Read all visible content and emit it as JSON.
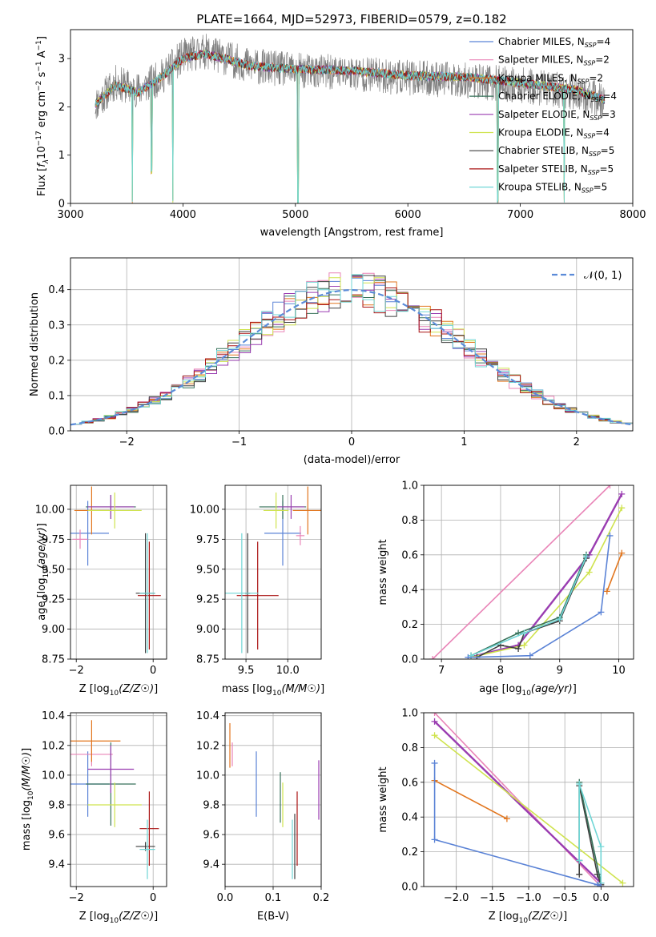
{
  "figure": {
    "title": "PLATE=1664, MJD=52973, FIBERID=0579, z=0.182"
  },
  "colors": {
    "Chabrier MILES": "#5b83d6",
    "Salpeter MILES": "#e984b7",
    "Kroupa MILES": "#e2761e",
    "Chabrier ELODIE": "#37725a",
    "Salpeter ELODIE": "#9a3db1",
    "Kroupa ELODIE": "#cfe34e",
    "Chabrier STELIB": "#3f3f3f",
    "Salpeter STELIB": "#aa1212",
    "Kroupa STELIB": "#70d6d6",
    "normal_curve": "#5b8bd8",
    "grid": "#b0b0b0"
  },
  "chart_data": [
    {
      "id": "spectrum",
      "type": "line",
      "title": "PLATE=1664, MJD=52973, FIBERID=0579, z=0.182",
      "xlabel": "wavelength [Angstrom, rest frame]",
      "ylabel": "Flux [f_λ10^-17 erg cm^-2 s^-1 A^-1]",
      "xlim": [
        3000,
        8000
      ],
      "ylim": [
        0,
        3.6
      ],
      "xticks": [
        "3000",
        "4000",
        "5000",
        "6000",
        "7000",
        "8000"
      ],
      "yticks": [
        "0",
        "1",
        "2",
        "3"
      ],
      "grid": false,
      "legend_position": "top-right",
      "legend": [
        {
          "model": "Chabrier MILES",
          "label": "Chabrier MILES, N",
          "n": "4"
        },
        {
          "model": "Salpeter MILES",
          "label": "Salpeter MILES, N",
          "n": "2"
        },
        {
          "model": "Kroupa MILES",
          "label": "Kroupa MILES, N",
          "n": "2"
        },
        {
          "model": "Chabrier ELODIE",
          "label": "Chabrier ELODIE, N",
          "n": "4"
        },
        {
          "model": "Salpeter ELODIE",
          "label": "Salpeter ELODIE, N",
          "n": "3"
        },
        {
          "model": "Kroupa ELODIE",
          "label": "Kroupa ELODIE, N",
          "n": "4"
        },
        {
          "model": "Chabrier STELIB",
          "label": "Chabrier STELIB, N",
          "n": "5"
        },
        {
          "model": "Salpeter STELIB",
          "label": "Salpeter STELIB, N",
          "n": "5"
        },
        {
          "model": "Kroupa STELIB",
          "label": "Kroupa STELIB, N",
          "n": "5"
        }
      ],
      "observed_anchors": {
        "x": [
          3220,
          3400,
          3600,
          3800,
          4000,
          4200,
          4600,
          5000,
          5500,
          6000,
          6500,
          7000,
          7500,
          7750
        ],
        "y": [
          2.05,
          2.5,
          2.35,
          2.6,
          3.05,
          3.15,
          2.85,
          2.75,
          2.7,
          2.6,
          2.55,
          2.45,
          2.3,
          2.1
        ]
      },
      "model_anchors": {
        "x": [
          3220,
          3400,
          3600,
          3800,
          4000,
          4200,
          4600,
          5000,
          5500,
          6000,
          6500,
          7000,
          7500,
          7750
        ],
        "y": [
          2.05,
          2.45,
          2.3,
          2.6,
          3.0,
          3.1,
          2.85,
          2.78,
          2.75,
          2.65,
          2.62,
          2.5,
          2.35,
          2.15
        ]
      },
      "absorption_features": [
        {
          "x": 3550,
          "y": 0.0
        },
        {
          "x": 3720,
          "y": 0.6
        },
        {
          "x": 3910,
          "y": 0.0
        },
        {
          "x": 5025,
          "y": 0.0
        },
        {
          "x": 6800,
          "y": 0.0
        },
        {
          "x": 7390,
          "y": 0.0
        }
      ]
    },
    {
      "id": "residuals",
      "type": "histogram",
      "xlabel": "(data-model)/error",
      "ylabel": "Normed distribution",
      "xlim": [
        -2.5,
        2.5
      ],
      "ylim": [
        0,
        0.49
      ],
      "xticks": [
        "−2",
        "−1",
        "0",
        "1",
        "2"
      ],
      "yticks": [
        "0.0",
        "0.1",
        "0.2",
        "0.3",
        "0.4"
      ],
      "grid": true,
      "bin_width": 0.1,
      "legend_position": "top-right",
      "curve_label": "𝒩(0, 1)"
    },
    {
      "id": "age_vs_Z",
      "type": "errorbar",
      "xlabel": "Z [log10(Z/Z☉)]",
      "ylabel": "age  [log10(age/yr)]",
      "xlim": [
        -2.15,
        0.35
      ],
      "ylim": [
        8.75,
        10.2
      ],
      "xticks": [
        "−2",
        "0"
      ],
      "yticks": [
        "8.75",
        "9.00",
        "9.25",
        "9.50",
        "9.75",
        "10.00"
      ],
      "grid": true,
      "points": [
        {
          "model": "Chabrier MILES",
          "x": -1.7,
          "y": 9.8,
          "xerr": 0.55,
          "yerr": 0.27
        },
        {
          "model": "Salpeter MILES",
          "x": -1.9,
          "y": 9.75,
          "xerr": 0.2,
          "yerr": 0.08
        },
        {
          "model": "Kroupa MILES",
          "x": -1.6,
          "y": 9.99,
          "xerr": 0.45,
          "yerr": 0.2
        },
        {
          "model": "Chabrier ELODIE",
          "x": -1.1,
          "y": 10.02,
          "xerr": 0.65,
          "yerr": 0.1
        },
        {
          "model": "Salpeter ELODIE",
          "x": -1.1,
          "y": 10.02,
          "xerr": 0.6,
          "yerr": 0.1
        },
        {
          "model": "Kroupa ELODIE",
          "x": -1.0,
          "y": 9.99,
          "xerr": 0.7,
          "yerr": 0.15
        },
        {
          "model": "Chabrier STELIB",
          "x": -0.2,
          "y": 9.3,
          "xerr": 0.25,
          "yerr": 0.5
        },
        {
          "model": "Salpeter STELIB",
          "x": -0.1,
          "y": 9.28,
          "xerr": 0.3,
          "yerr": 0.45
        },
        {
          "model": "Kroupa STELIB",
          "x": -0.15,
          "y": 9.3,
          "xerr": 0.2,
          "yerr": 0.5
        }
      ]
    },
    {
      "id": "age_vs_mass",
      "type": "errorbar",
      "xlabel": "mass [log10(M/M☉)]",
      "ylabel": "",
      "xlim": [
        9.25,
        10.4
      ],
      "ylim": [
        8.75,
        10.2
      ],
      "xticks": [
        "9.5",
        "10.0"
      ],
      "yticks": [
        "8.75",
        "9.00",
        "9.25",
        "9.50",
        "9.75",
        "10.00"
      ],
      "grid": true,
      "points": [
        {
          "model": "Chabrier MILES",
          "x": 9.94,
          "y": 9.8,
          "xerr": 0.22,
          "yerr": 0.27
        },
        {
          "model": "Salpeter MILES",
          "x": 10.15,
          "y": 9.78,
          "xerr": 0.05,
          "yerr": 0.08
        },
        {
          "model": "Kroupa MILES",
          "x": 10.24,
          "y": 9.99,
          "xerr": 0.18,
          "yerr": 0.2
        },
        {
          "model": "Chabrier ELODIE",
          "x": 9.94,
          "y": 10.02,
          "xerr": 0.28,
          "yerr": 0.1
        },
        {
          "model": "Salpeter ELODIE",
          "x": 10.04,
          "y": 10.02,
          "xerr": 0.16,
          "yerr": 0.1
        },
        {
          "model": "Kroupa ELODIE",
          "x": 9.86,
          "y": 9.99,
          "xerr": 0.15,
          "yerr": 0.15
        },
        {
          "model": "Chabrier STELIB",
          "x": 9.52,
          "y": 9.3,
          "xerr": 0.03,
          "yerr": 0.5
        },
        {
          "model": "Salpeter STELIB",
          "x": 9.64,
          "y": 9.28,
          "xerr": 0.25,
          "yerr": 0.45
        },
        {
          "model": "Kroupa STELIB",
          "x": 9.45,
          "y": 9.3,
          "xerr": 0.2,
          "yerr": 0.5
        }
      ]
    },
    {
      "id": "weight_vs_age",
      "type": "line",
      "xlabel": "age  [log10(age/yr)]",
      "ylabel": "mass weight",
      "xlim": [
        6.7,
        10.25
      ],
      "ylim": [
        0,
        1
      ],
      "xticks": [
        "7",
        "8",
        "9",
        "10"
      ],
      "yticks": [
        "0.0",
        "0.2",
        "0.4",
        "0.6",
        "0.8",
        "1.0"
      ],
      "grid": true,
      "series": [
        {
          "model": "Salpeter MILES",
          "x": [
            6.85,
            9.85
          ],
          "y": [
            0.0,
            1.0
          ]
        },
        {
          "model": "Salpeter ELODIE",
          "x": [
            7.6,
            8.3,
            9.5,
            10.05
          ],
          "y": [
            0.02,
            0.08,
            0.6,
            0.95
          ]
        },
        {
          "model": "Kroupa ELODIE",
          "x": [
            7.5,
            8.4,
            9.5,
            10.05
          ],
          "y": [
            0.01,
            0.08,
            0.5,
            0.87
          ]
        },
        {
          "model": "Chabrier STELIB",
          "x": [
            7.6,
            8.0,
            8.3,
            8.4,
            9.0,
            9.45
          ],
          "y": [
            0.01,
            0.08,
            0.06,
            0.15,
            0.22,
            0.58
          ]
        },
        {
          "model": "Chabrier ELODIE",
          "x": [
            7.5,
            8.3,
            9.0,
            9.45
          ],
          "y": [
            0.02,
            0.15,
            0.24,
            0.6
          ]
        },
        {
          "model": "Kroupa STELIB",
          "x": [
            7.5,
            8.4,
            9.0,
            9.45
          ],
          "y": [
            0.02,
            0.15,
            0.23,
            0.59
          ]
        },
        {
          "model": "Kroupa MILES",
          "x": [
            9.8,
            10.05
          ],
          "y": [
            0.39,
            0.61
          ]
        },
        {
          "model": "Chabrier MILES",
          "x": [
            7.45,
            8.5,
            9.7,
            9.85
          ],
          "y": [
            0.01,
            0.02,
            0.27,
            0.71
          ]
        }
      ]
    },
    {
      "id": "mass_vs_Z",
      "type": "errorbar",
      "xlabel": "Z [log10(Z/Z☉)]",
      "ylabel": "mass [log10(M/M☉)]",
      "xlim": [
        -2.15,
        0.35
      ],
      "ylim": [
        9.25,
        10.42
      ],
      "xticks": [
        "−2",
        "0"
      ],
      "yticks": [
        "9.4",
        "9.6",
        "9.8",
        "10.0",
        "10.2",
        "10.4"
      ],
      "grid": true,
      "points": [
        {
          "model": "Chabrier MILES",
          "x": -1.7,
          "y": 9.94,
          "xerr": 0.55,
          "yerr": 0.22
        },
        {
          "model": "Salpeter MILES",
          "x": -1.6,
          "y": 10.14,
          "xerr": 0.55,
          "yerr": 0.08
        },
        {
          "model": "Kroupa MILES",
          "x": -1.6,
          "y": 10.23,
          "xerr": 0.75,
          "yerr": 0.14
        },
        {
          "model": "Chabrier ELODIE",
          "x": -1.1,
          "y": 9.94,
          "xerr": 0.65,
          "yerr": 0.28
        },
        {
          "model": "Salpeter ELODIE",
          "x": -1.1,
          "y": 10.04,
          "xerr": 0.6,
          "yerr": 0.16
        },
        {
          "model": "Kroupa ELODIE",
          "x": -1.0,
          "y": 9.8,
          "xerr": 0.7,
          "yerr": 0.15
        },
        {
          "model": "Chabrier STELIB",
          "x": -0.2,
          "y": 9.52,
          "xerr": 0.25,
          "yerr": 0.03
        },
        {
          "model": "Salpeter STELIB",
          "x": -0.1,
          "y": 9.64,
          "xerr": 0.25,
          "yerr": 0.25
        },
        {
          "model": "Kroupa STELIB",
          "x": -0.15,
          "y": 9.5,
          "xerr": 0.2,
          "yerr": 0.2
        }
      ]
    },
    {
      "id": "mass_vs_ebv",
      "type": "errorbar",
      "xlabel": "E(B-V)",
      "ylabel": "",
      "xlim": [
        0,
        0.2
      ],
      "ylim": [
        9.25,
        10.42
      ],
      "xticks": [
        "0.0",
        "0.1",
        "0.2"
      ],
      "yticks": [
        "9.4",
        "9.6",
        "9.8",
        "10.0",
        "10.2",
        "10.4"
      ],
      "grid": true,
      "points": [
        {
          "model": "Chabrier MILES",
          "x": 0.065,
          "y": 9.94,
          "xerr": 0.0,
          "yerr": 0.22
        },
        {
          "model": "Salpeter MILES",
          "x": 0.015,
          "y": 10.14,
          "xerr": 0.0,
          "yerr": 0.08
        },
        {
          "model": "Kroupa MILES",
          "x": 0.01,
          "y": 10.2,
          "xerr": 0.0,
          "yerr": 0.15
        },
        {
          "model": "Chabrier ELODIE",
          "x": 0.115,
          "y": 9.85,
          "xerr": 0.0,
          "yerr": 0.17
        },
        {
          "model": "Salpeter ELODIE",
          "x": 0.195,
          "y": 9.9,
          "xerr": 0.0,
          "yerr": 0.2
        },
        {
          "model": "Kroupa ELODIE",
          "x": 0.12,
          "y": 9.8,
          "xerr": 0.0,
          "yerr": 0.15
        },
        {
          "model": "Chabrier STELIB",
          "x": 0.145,
          "y": 9.52,
          "xerr": 0.0,
          "yerr": 0.22
        },
        {
          "model": "Salpeter STELIB",
          "x": 0.15,
          "y": 9.64,
          "xerr": 0.0,
          "yerr": 0.25
        },
        {
          "model": "Kroupa STELIB",
          "x": 0.14,
          "y": 9.5,
          "xerr": 0.0,
          "yerr": 0.2
        }
      ]
    },
    {
      "id": "weight_vs_Z",
      "type": "line",
      "xlabel": "Z [log10(Z/Z☉)]",
      "ylabel": "mass weight",
      "xlim": [
        -2.45,
        0.45
      ],
      "ylim": [
        0,
        1
      ],
      "xticks": [
        "−2.0",
        "−1.5",
        "−1.0",
        "−0.5",
        "0.0"
      ],
      "yticks": [
        "0.0",
        "0.2",
        "0.4",
        "0.6",
        "0.8",
        "1.0"
      ],
      "grid": true,
      "series": [
        {
          "model": "Salpeter MILES",
          "x": [
            -2.3,
            0.0
          ],
          "y": [
            1.0,
            0.0
          ]
        },
        {
          "model": "Salpeter ELODIE",
          "x": [
            -2.3,
            0.0
          ],
          "y": [
            0.95,
            0.02
          ]
        },
        {
          "model": "Kroupa ELODIE",
          "x": [
            -2.3,
            0.3
          ],
          "y": [
            0.87,
            0.02
          ]
        },
        {
          "model": "Kroupa MILES",
          "x": [
            -2.3,
            -1.3
          ],
          "y": [
            0.61,
            0.39
          ]
        },
        {
          "model": "Chabrier STELIB",
          "x": [
            -0.3,
            -0.3,
            -0.05,
            0.0
          ],
          "y": [
            0.07,
            0.58,
            0.07,
            0.01
          ]
        },
        {
          "model": "Chabrier ELODIE",
          "x": [
            -0.3,
            -0.3,
            0.0
          ],
          "y": [
            0.15,
            0.6,
            0.02
          ]
        },
        {
          "model": "Kroupa STELIB",
          "x": [
            -0.3,
            -0.3,
            0.0,
            0.0
          ],
          "y": [
            0.15,
            0.59,
            0.23,
            0.02
          ]
        },
        {
          "model": "Chabrier MILES",
          "x": [
            -2.3,
            -2.3,
            -0.05,
            0.0
          ],
          "y": [
            0.71,
            0.27,
            0.01,
            0.0
          ]
        }
      ]
    }
  ]
}
